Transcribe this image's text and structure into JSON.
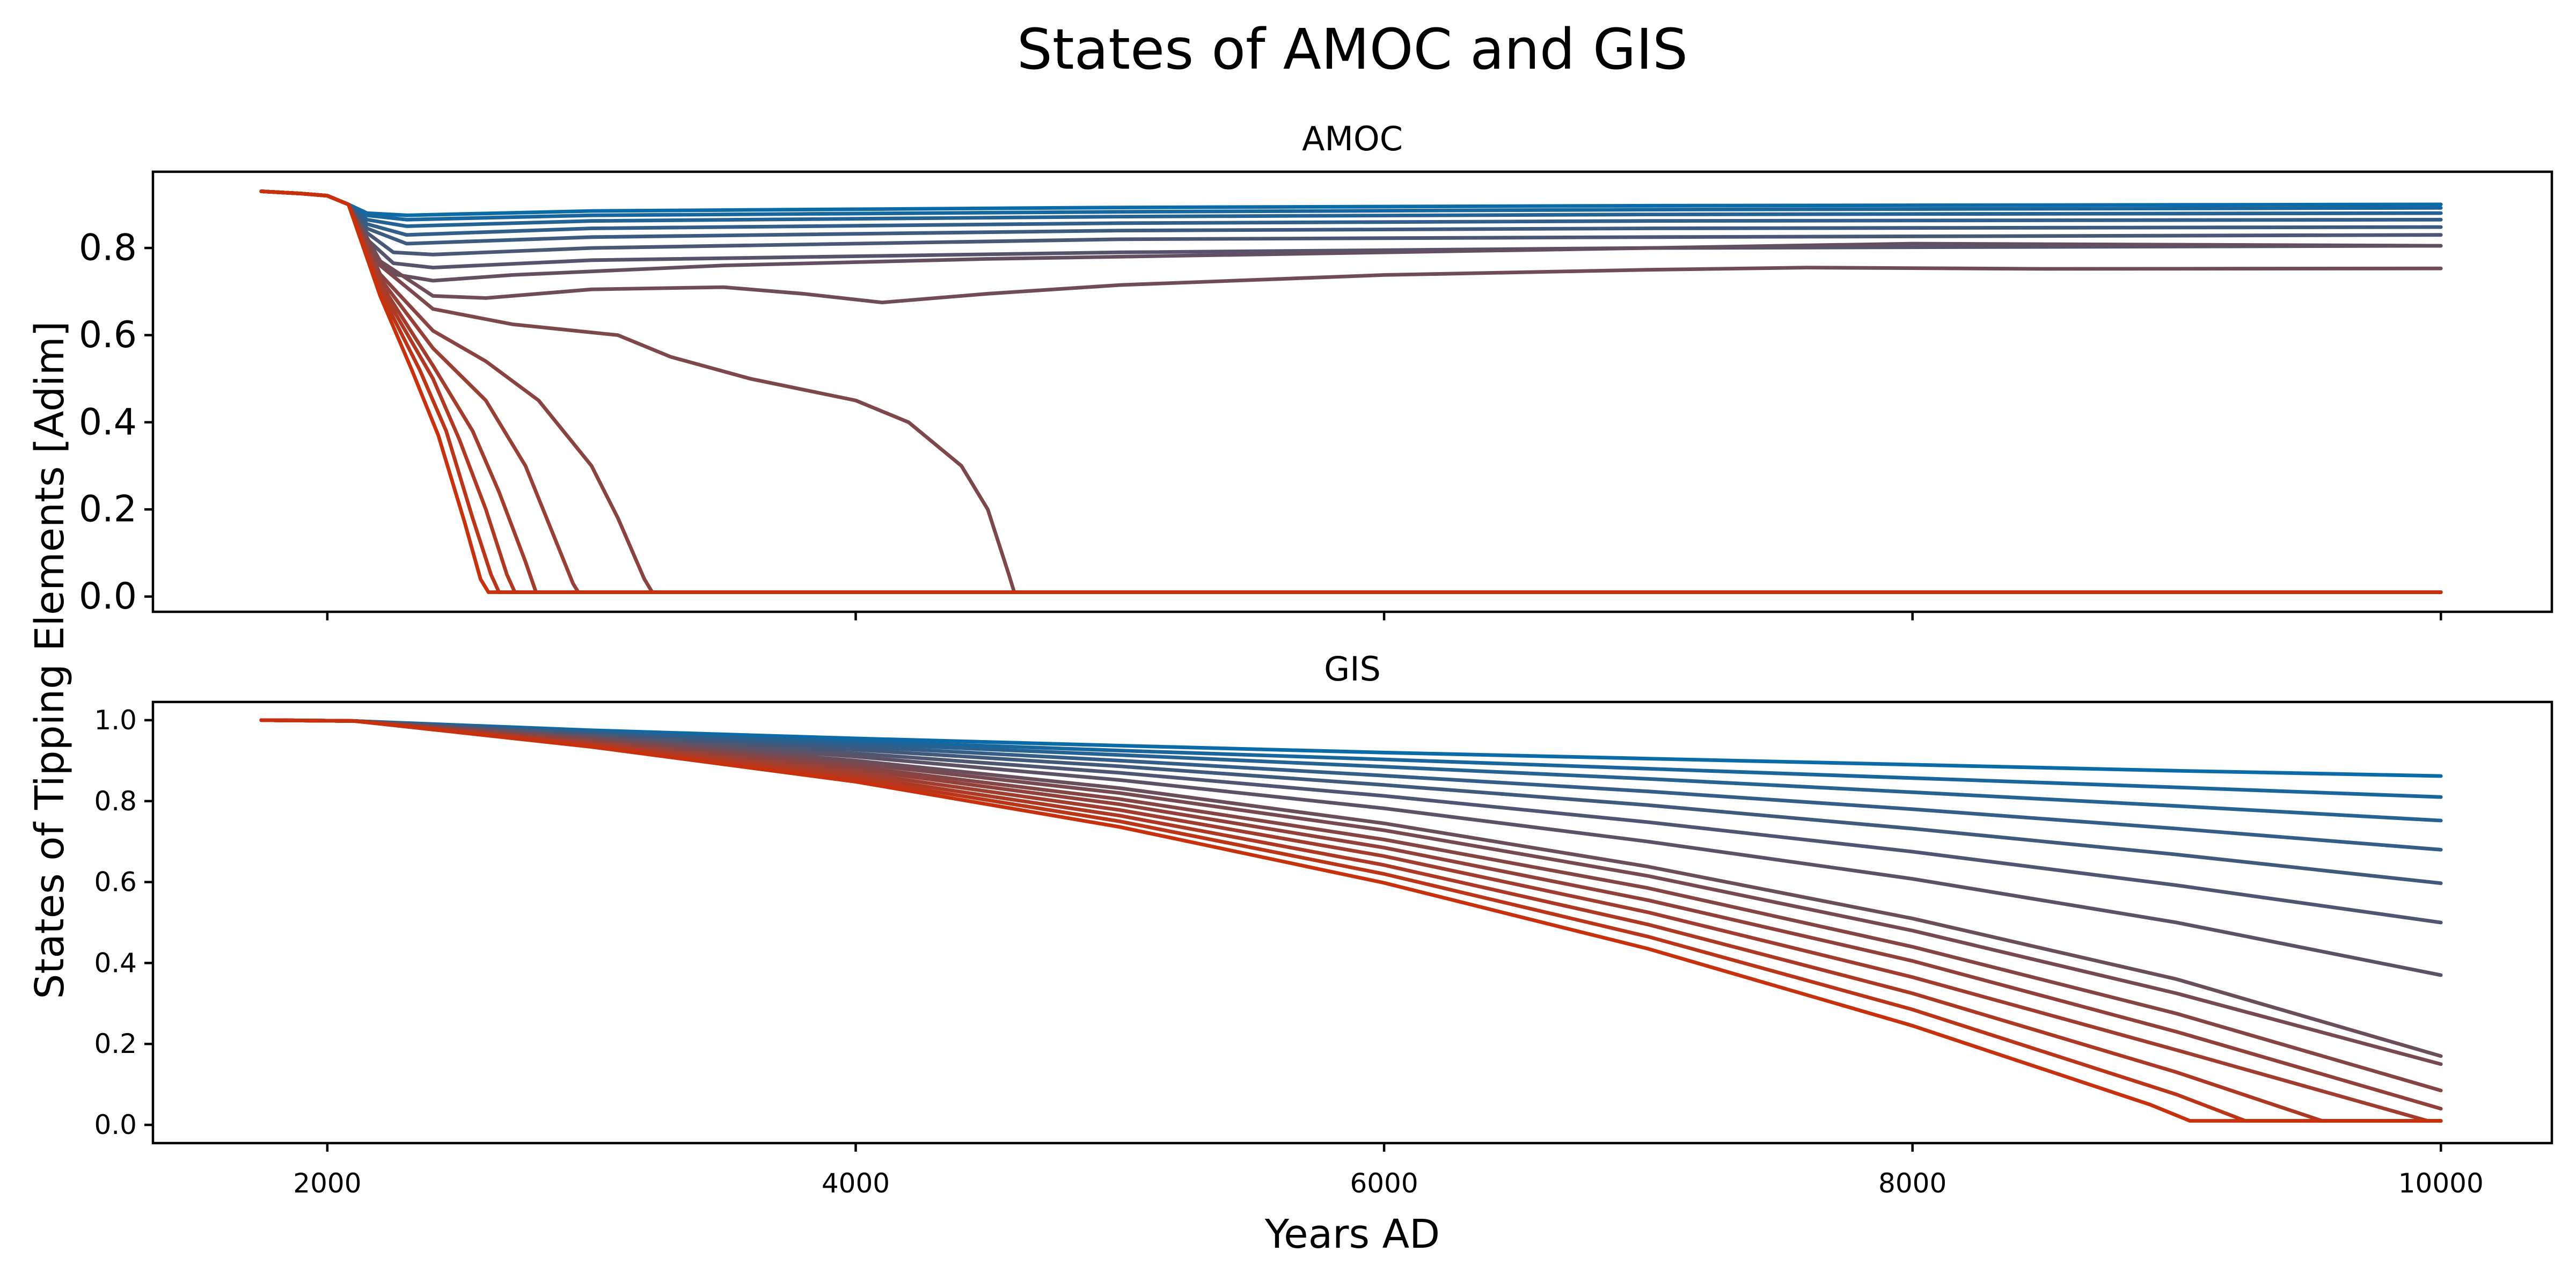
{
  "chart_data": {
    "type": "line",
    "title": "States of AMOC and GIS",
    "ylabel": "States of Tipping Elements [Adim]",
    "xlabel": "Years AD",
    "xlim": [
      1340,
      10420
    ],
    "xticks": [
      2000,
      4000,
      6000,
      8000,
      10000
    ],
    "xtick_labels": [
      "2000",
      "4000",
      "6000",
      "8000",
      "10000"
    ],
    "color_start": "#0b6aa8",
    "color_end": "#c8310e",
    "grid": false,
    "legend": "none",
    "panels": [
      {
        "title": "AMOC",
        "ylim": [
          -0.035,
          0.975
        ],
        "yticks": [
          0.0,
          0.2,
          0.4,
          0.6,
          0.8
        ],
        "ytick_labels": [
          "0.0",
          "0.2",
          "0.4",
          "0.6",
          "0.8"
        ],
        "series": [
          {
            "x": [
              1750,
              1900,
              2000,
              2080,
              2150,
              2300,
              3000,
              5000,
              7000,
              10000
            ],
            "y": [
              0.93,
              0.925,
              0.92,
              0.9,
              0.88,
              0.875,
              0.885,
              0.893,
              0.897,
              0.9
            ]
          },
          {
            "x": [
              1750,
              1900,
              2000,
              2080,
              2150,
              2300,
              3000,
              5000,
              7000,
              10000
            ],
            "y": [
              0.93,
              0.925,
              0.92,
              0.9,
              0.875,
              0.865,
              0.875,
              0.883,
              0.888,
              0.892
            ]
          },
          {
            "x": [
              1750,
              1900,
              2000,
              2080,
              2150,
              2300,
              3000,
              5000,
              7000,
              10000
            ],
            "y": [
              0.93,
              0.925,
              0.92,
              0.9,
              0.865,
              0.85,
              0.862,
              0.872,
              0.877,
              0.88
            ]
          },
          {
            "x": [
              1750,
              1900,
              2000,
              2080,
              2150,
              2300,
              3000,
              5000,
              7000,
              10000
            ],
            "y": [
              0.93,
              0.925,
              0.92,
              0.9,
              0.855,
              0.83,
              0.845,
              0.857,
              0.862,
              0.865
            ]
          },
          {
            "x": [
              1750,
              1900,
              2000,
              2080,
              2150,
              2300,
              3000,
              5000,
              7000,
              10000
            ],
            "y": [
              0.93,
              0.925,
              0.92,
              0.9,
              0.845,
              0.81,
              0.825,
              0.84,
              0.845,
              0.848
            ]
          },
          {
            "x": [
              1750,
              1900,
              2000,
              2080,
              2150,
              2250,
              2400,
              3000,
              5000,
              7000,
              10000
            ],
            "y": [
              0.93,
              0.925,
              0.92,
              0.9,
              0.835,
              0.79,
              0.785,
              0.8,
              0.82,
              0.825,
              0.83
            ]
          },
          {
            "x": [
              1750,
              1900,
              2000,
              2080,
              2150,
              2250,
              2400,
              3000,
              5000,
              7000,
              10000
            ],
            "y": [
              0.93,
              0.925,
              0.92,
              0.9,
              0.82,
              0.765,
              0.755,
              0.772,
              0.79,
              0.8,
              0.805
            ]
          },
          {
            "x": [
              1750,
              1900,
              2000,
              2080,
              2150,
              2250,
              2400,
              2700,
              3500,
              4500,
              6000,
              8000,
              10000
            ],
            "y": [
              0.93,
              0.925,
              0.92,
              0.9,
              0.8,
              0.74,
              0.725,
              0.738,
              0.76,
              0.775,
              0.79,
              0.81,
              0.805
            ]
          },
          {
            "x": [
              1750,
              1900,
              2000,
              2080,
              2200,
              2400,
              2600,
              3000,
              3500,
              3800,
              4100,
              4500,
              5000,
              6000,
              7000,
              7600,
              8500,
              10000
            ],
            "y": [
              0.93,
              0.925,
              0.92,
              0.9,
              0.77,
              0.69,
              0.685,
              0.705,
              0.71,
              0.695,
              0.675,
              0.695,
              0.715,
              0.738,
              0.75,
              0.755,
              0.752,
              0.753
            ]
          },
          {
            "x": [
              1750,
              1900,
              2000,
              2080,
              2200,
              2400,
              2700,
              3100,
              3300,
              3600,
              4000,
              4200,
              4400,
              4500,
              4580,
              4600,
              10000
            ],
            "y": [
              0.93,
              0.925,
              0.92,
              0.9,
              0.76,
              0.66,
              0.625,
              0.6,
              0.55,
              0.5,
              0.45,
              0.4,
              0.3,
              0.2,
              0.05,
              0.01,
              0.01
            ]
          },
          {
            "x": [
              1750,
              1900,
              2000,
              2080,
              2200,
              2400,
              2600,
              2800,
              3000,
              3100,
              3200,
              3230,
              10000
            ],
            "y": [
              0.93,
              0.925,
              0.92,
              0.9,
              0.74,
              0.61,
              0.54,
              0.45,
              0.3,
              0.18,
              0.04,
              0.01,
              0.01
            ]
          },
          {
            "x": [
              1750,
              1900,
              2000,
              2080,
              2200,
              2400,
              2600,
              2750,
              2850,
              2930,
              2950,
              10000
            ],
            "y": [
              0.93,
              0.925,
              0.92,
              0.9,
              0.73,
              0.57,
              0.45,
              0.3,
              0.15,
              0.03,
              0.01,
              0.01
            ]
          },
          {
            "x": [
              1750,
              1900,
              2000,
              2080,
              2200,
              2400,
              2550,
              2650,
              2750,
              2790,
              10000
            ],
            "y": [
              0.93,
              0.925,
              0.92,
              0.9,
              0.72,
              0.53,
              0.38,
              0.24,
              0.08,
              0.01,
              0.01
            ]
          },
          {
            "x": [
              1750,
              1900,
              2000,
              2080,
              2200,
              2400,
              2500,
              2600,
              2680,
              2710,
              10000
            ],
            "y": [
              0.93,
              0.925,
              0.92,
              0.9,
              0.71,
              0.5,
              0.36,
              0.2,
              0.05,
              0.01,
              0.01
            ]
          },
          {
            "x": [
              1750,
              1900,
              2000,
              2080,
              2200,
              2350,
              2450,
              2550,
              2620,
              2650,
              10000
            ],
            "y": [
              0.93,
              0.925,
              0.92,
              0.9,
              0.7,
              0.52,
              0.38,
              0.18,
              0.05,
              0.01,
              0.01
            ]
          },
          {
            "x": [
              1750,
              1900,
              2000,
              2080,
              2200,
              2320,
              2420,
              2520,
              2580,
              2610,
              10000
            ],
            "y": [
              0.93,
              0.925,
              0.92,
              0.9,
              0.69,
              0.52,
              0.37,
              0.17,
              0.04,
              0.01,
              0.01
            ]
          }
        ]
      },
      {
        "title": "GIS",
        "ylim": [
          -0.045,
          1.045
        ],
        "yticks": [
          0.0,
          0.2,
          0.4,
          0.6,
          0.8,
          1.0
        ],
        "ytick_labels": [
          "0.0",
          "0.2",
          "0.4",
          "0.6",
          "0.8",
          "1.0"
        ],
        "series": [
          {
            "x": [
              1750,
              2100,
              3000,
              4000,
              5000,
              6000,
              7000,
              8000,
              9000,
              10000
            ],
            "y": [
              1.0,
              0.998,
              0.975,
              0.955,
              0.937,
              0.92,
              0.905,
              0.89,
              0.875,
              0.862
            ]
          },
          {
            "x": [
              1750,
              2100,
              3000,
              4000,
              5000,
              6000,
              7000,
              8000,
              9000,
              10000
            ],
            "y": [
              1.0,
              0.998,
              0.972,
              0.948,
              0.925,
              0.903,
              0.88,
              0.857,
              0.834,
              0.81
            ]
          },
          {
            "x": [
              1750,
              2100,
              3000,
              4000,
              5000,
              6000,
              7000,
              8000,
              9000,
              10000
            ],
            "y": [
              1.0,
              0.998,
              0.97,
              0.942,
              0.914,
              0.885,
              0.855,
              0.822,
              0.788,
              0.752
            ]
          },
          {
            "x": [
              1750,
              2100,
              3000,
              4000,
              5000,
              6000,
              7000,
              8000,
              9000,
              10000
            ],
            "y": [
              1.0,
              0.998,
              0.967,
              0.935,
              0.9,
              0.863,
              0.824,
              0.78,
              0.732,
              0.68
            ]
          },
          {
            "x": [
              1750,
              2100,
              3000,
              4000,
              5000,
              6000,
              7000,
              8000,
              9000,
              10000
            ],
            "y": [
              1.0,
              0.998,
              0.964,
              0.927,
              0.886,
              0.84,
              0.79,
              0.732,
              0.668,
              0.597
            ]
          },
          {
            "x": [
              1750,
              2100,
              3000,
              4000,
              5000,
              6000,
              7000,
              8000,
              9000,
              10000
            ],
            "y": [
              1.0,
              0.998,
              0.961,
              0.918,
              0.87,
              0.813,
              0.748,
              0.675,
              0.592,
              0.5
            ]
          },
          {
            "x": [
              1750,
              2100,
              3000,
              4000,
              5000,
              6000,
              7000,
              8000,
              9000,
              10000
            ],
            "y": [
              1.0,
              0.998,
              0.958,
              0.91,
              0.852,
              0.782,
              0.7,
              0.608,
              0.5,
              0.37
            ]
          },
          {
            "x": [
              1750,
              2100,
              3000,
              4000,
              5000,
              6000,
              7000,
              8000,
              9000,
              10000
            ],
            "y": [
              1.0,
              0.998,
              0.955,
              0.9,
              0.832,
              0.745,
              0.638,
              0.51,
              0.36,
              0.17
            ]
          },
          {
            "x": [
              1750,
              2100,
              3000,
              4000,
              5000,
              6000,
              7000,
              8000,
              9000,
              10000
            ],
            "y": [
              1.0,
              0.998,
              0.952,
              0.893,
              0.82,
              0.728,
              0.615,
              0.48,
              0.325,
              0.15
            ]
          },
          {
            "x": [
              1750,
              2100,
              3000,
              4000,
              5000,
              6000,
              7000,
              8000,
              9000,
              10000
            ],
            "y": [
              1.0,
              0.998,
              0.949,
              0.885,
              0.805,
              0.705,
              0.585,
              0.44,
              0.275,
              0.085
            ]
          },
          {
            "x": [
              1750,
              2100,
              3000,
              4000,
              5000,
              6000,
              7000,
              8000,
              9000,
              10000
            ],
            "y": [
              1.0,
              0.998,
              0.946,
              0.878,
              0.792,
              0.685,
              0.555,
              0.405,
              0.23,
              0.04
            ]
          },
          {
            "x": [
              1750,
              2100,
              3000,
              4000,
              5000,
              6000,
              7000,
              8000,
              9000,
              9950,
              10000
            ],
            "y": [
              1.0,
              0.998,
              0.943,
              0.87,
              0.778,
              0.664,
              0.525,
              0.365,
              0.185,
              0.01,
              0.01
            ]
          },
          {
            "x": [
              1750,
              2100,
              3000,
              4000,
              5000,
              6000,
              7000,
              8000,
              9000,
              9550,
              10000
            ],
            "y": [
              1.0,
              0.998,
              0.94,
              0.862,
              0.764,
              0.642,
              0.495,
              0.325,
              0.13,
              0.01,
              0.01
            ]
          },
          {
            "x": [
              1750,
              2100,
              3000,
              4000,
              5000,
              6000,
              7000,
              8000,
              9000,
              9260,
              10000
            ],
            "y": [
              1.0,
              0.998,
              0.937,
              0.855,
              0.75,
              0.62,
              0.465,
              0.285,
              0.075,
              0.01,
              0.01
            ]
          },
          {
            "x": [
              1750,
              2100,
              3000,
              4000,
              5000,
              6000,
              7000,
              8000,
              8900,
              9050,
              10000
            ],
            "y": [
              1.0,
              0.998,
              0.934,
              0.848,
              0.736,
              0.598,
              0.435,
              0.245,
              0.05,
              0.01,
              0.01
            ]
          }
        ]
      }
    ]
  }
}
